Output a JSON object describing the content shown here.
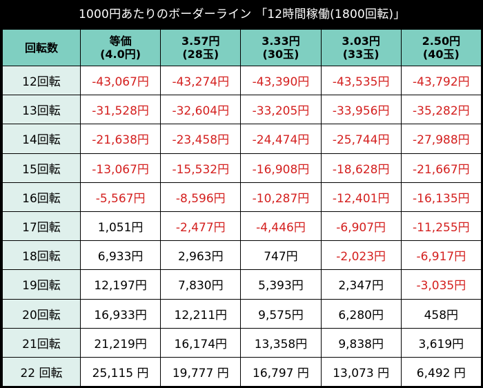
{
  "title": "1000円あたりのボーダーライン 「12時間稼働(1800回転)」",
  "colors": {
    "header_bg": "#7fcfc1",
    "row_label_bg": "#dff0ec",
    "negative_text": "#d4201f",
    "positive_text": "#000000",
    "frame": "#000000"
  },
  "table": {
    "corner_header": "回転数",
    "columns": [
      {
        "line1": "等価",
        "line2": "(4.0円)"
      },
      {
        "line1": "3.57円",
        "line2": "(28玉)"
      },
      {
        "line1": "3.33円",
        "line2": "(30玉)"
      },
      {
        "line1": "3.03円",
        "line2": "(33玉)"
      },
      {
        "line1": "2.50円",
        "line2": "(40玉)"
      }
    ],
    "rows": [
      {
        "label": "12回転",
        "cells": [
          "-43,067円",
          "-43,274円",
          "-43,390円",
          "-43,535円",
          "-43,792円"
        ],
        "negative": [
          true,
          true,
          true,
          true,
          true
        ]
      },
      {
        "label": "13回転",
        "cells": [
          "-31,528円",
          "-32,604円",
          "-33,205円",
          "-33,956円",
          "-35,282円"
        ],
        "negative": [
          true,
          true,
          true,
          true,
          true
        ]
      },
      {
        "label": "14回転",
        "cells": [
          "-21,638円",
          "-23,458円",
          "-24,474円",
          "-25,744円",
          "-27,988円"
        ],
        "negative": [
          true,
          true,
          true,
          true,
          true
        ]
      },
      {
        "label": "15回転",
        "cells": [
          "-13,067円",
          "-15,532円",
          "-16,908円",
          "-18,628円",
          "-21,667円"
        ],
        "negative": [
          true,
          true,
          true,
          true,
          true
        ]
      },
      {
        "label": "16回転",
        "cells": [
          "-5,567円",
          "-8,596円",
          "-10,287円",
          "-12,401円",
          "-16,135円"
        ],
        "negative": [
          true,
          true,
          true,
          true,
          true
        ]
      },
      {
        "label": "17回転",
        "cells": [
          "1,051円",
          "-2,477円",
          "-4,446円",
          "-6,907円",
          "-11,255円"
        ],
        "negative": [
          false,
          true,
          true,
          true,
          true
        ]
      },
      {
        "label": "18回転",
        "cells": [
          "6,933円",
          "2,963円",
          "747円",
          "-2,023円",
          "-6,917円"
        ],
        "negative": [
          false,
          false,
          false,
          true,
          true
        ]
      },
      {
        "label": "19回転",
        "cells": [
          "12,197円",
          "7,830円",
          "5,393円",
          "2,347円",
          "-3,035円"
        ],
        "negative": [
          false,
          false,
          false,
          false,
          true
        ]
      },
      {
        "label": "20回転",
        "cells": [
          "16,933円",
          "12,211円",
          "9,575円",
          "6,280円",
          "458円"
        ],
        "negative": [
          false,
          false,
          false,
          false,
          false
        ]
      },
      {
        "label": "21回転",
        "cells": [
          "21,219円",
          "16,174円",
          "13,358円",
          "9,838円",
          "3,619円"
        ],
        "negative": [
          false,
          false,
          false,
          false,
          false
        ]
      },
      {
        "label": "22 回転",
        "cells": [
          "25,115 円",
          "19,777 円",
          "16,797 円",
          "13,073 円",
          "6,492 円"
        ],
        "negative": [
          false,
          false,
          false,
          false,
          false
        ]
      }
    ]
  }
}
